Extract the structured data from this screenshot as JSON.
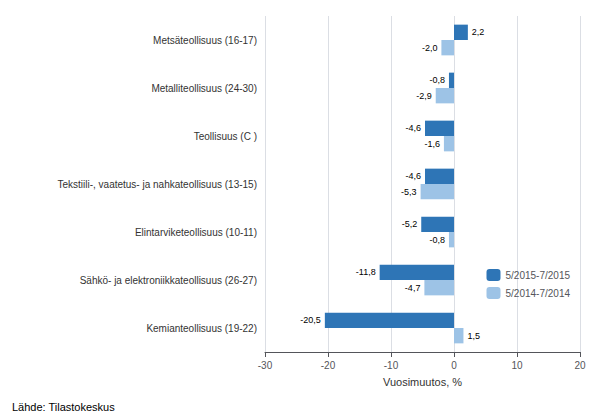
{
  "chart_data": {
    "type": "bar",
    "orientation": "horizontal",
    "categories": [
      "Kemianteollisuus (19-22)",
      "Sähkö- ja elektroniikkateollisuus (26-27)",
      "Elintarviketeollisuus (10-11)",
      "Tekstiili-, vaatetus- ja nahkateollisuus (13-15)",
      "Teollisuus (C )",
      "Metalliteollisuus (24-30)",
      "Metsäteollisuus (16-17)"
    ],
    "series": [
      {
        "name": "5/2015-7/2015",
        "color": "#2E75B6",
        "values": [
          -20.5,
          -11.8,
          -5.2,
          -4.6,
          -4.6,
          -0.8,
          2.2
        ],
        "value_labels": [
          "-20,5",
          "-11,8",
          "-5,2",
          "-4,6",
          "-4,6",
          "-0,8",
          "2,2"
        ]
      },
      {
        "name": "5/2014-7/2014",
        "color": "#9DC3E6",
        "values": [
          1.5,
          -4.7,
          -0.8,
          -5.3,
          -1.6,
          -2.9,
          -2.0
        ],
        "value_labels": [
          "1,5",
          "-4,7",
          "-0,8",
          "-5,3",
          "-1,6",
          "-2,9",
          "-2,0"
        ]
      }
    ],
    "xlabel": "Vuosimuutos, %",
    "xlim": [
      -30,
      20
    ],
    "xticks": [
      -30,
      -20,
      -10,
      0,
      10,
      20
    ],
    "grid": true,
    "legend": "lower right",
    "data_labels": true,
    "annotations": [
      "Lähde: Tilastokeskus"
    ]
  }
}
